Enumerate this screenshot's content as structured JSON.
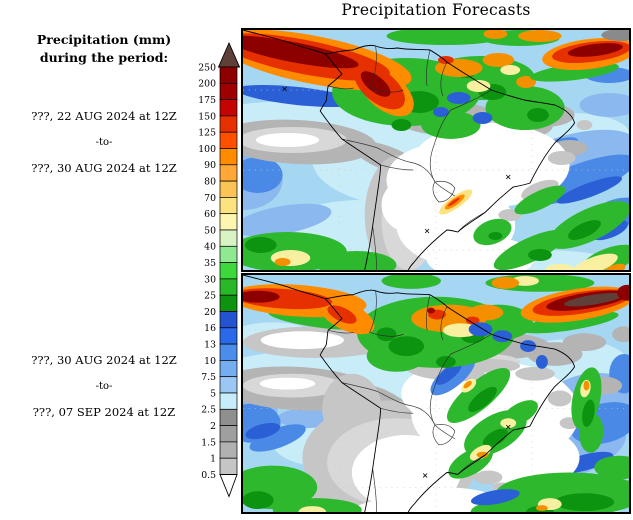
{
  "title": "Precipitation Forecasts",
  "legend": {
    "heading_line1": "Precipitation (mm)",
    "heading_line2": "during the period:"
  },
  "periods": {
    "week1": {
      "start": "???, 22 AUG 2024 at 12Z",
      "separator": "-to-",
      "end": "???, 30 AUG 2024 at 12Z"
    },
    "week2": {
      "start": "???, 30 AUG 2024 at 12Z",
      "separator": "-to-",
      "end": "???, 07 SEP 2024 at 12Z"
    }
  },
  "colorbar": {
    "levels": [
      "250",
      "200",
      "175",
      "150",
      "125",
      "100",
      "90",
      "80",
      "70",
      "60",
      "50",
      "40",
      "35",
      "30",
      "25",
      "20",
      "16",
      "13",
      "10",
      "7.5",
      "5",
      "2.5",
      "2",
      "1.5",
      "1",
      "0.5"
    ],
    "segment_colors_top_to_bottom": [
      "#8c0000",
      "#9e0000",
      "#c40400",
      "#e63000",
      "#ff5000",
      "#ff8c00",
      "#ffa838",
      "#fcc455",
      "#fbe380",
      "#fdf6b0",
      "#d9f3c4",
      "#90e890",
      "#3cd83c",
      "#28b828",
      "#0e9310",
      "#2353cf",
      "#2a6ae8",
      "#4c8dec",
      "#74adf0",
      "#9bc7f4",
      "#c6edf9",
      "#8f8f8f",
      "#9f9f9f",
      "#b1b1b1",
      "#c5c5c5"
    ],
    "above_max_color": "#5e4038",
    "below_min_color": "#ffffff"
  },
  "panel_count": 2
}
